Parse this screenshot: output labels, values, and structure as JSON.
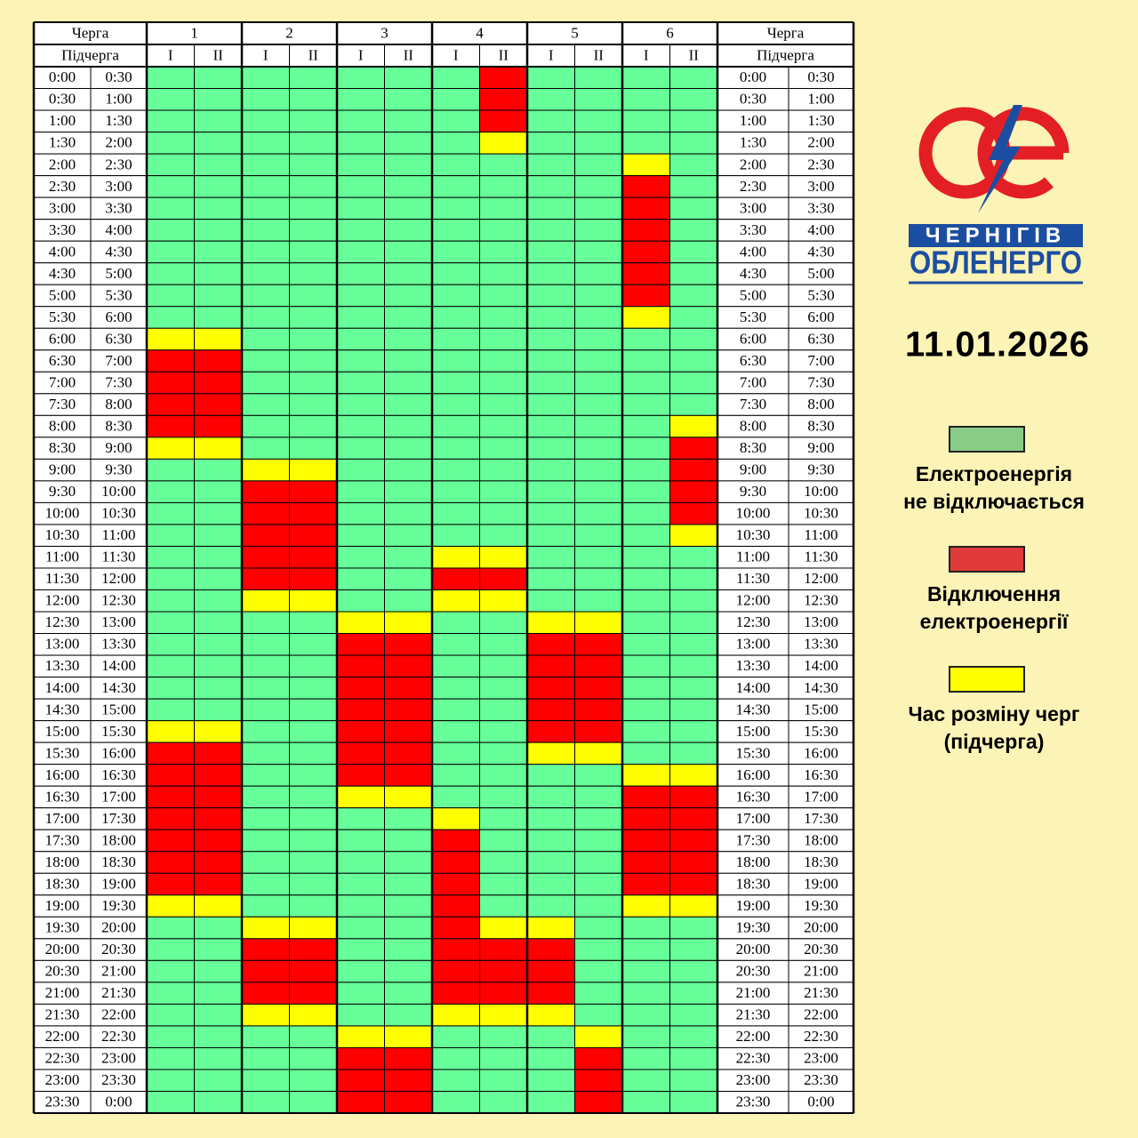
{
  "header": {
    "queue_label": "Черга",
    "subqueue_label": "Підчерга",
    "queues": [
      "1",
      "2",
      "3",
      "4",
      "5",
      "6"
    ],
    "subqueues": [
      "I",
      "II",
      "I",
      "II",
      "I",
      "II",
      "I",
      "II",
      "I",
      "II",
      "I",
      "II"
    ]
  },
  "rows": [
    {
      "from": "0:00",
      "to": "0:30",
      "cells": [
        "#6f9",
        "#6f9",
        "#6f9",
        "#6f9",
        "#6f9",
        "#6f9",
        "#6f9",
        "#f00",
        "#6f9",
        "#6f9",
        "#6f9",
        "#6f9"
      ]
    },
    {
      "from": "0:30",
      "to": "1:00",
      "cells": [
        "#6f9",
        "#6f9",
        "#6f9",
        "#6f9",
        "#6f9",
        "#6f9",
        "#6f9",
        "#f00",
        "#6f9",
        "#6f9",
        "#6f9",
        "#6f9"
      ]
    },
    {
      "from": "1:00",
      "to": "1:30",
      "cells": [
        "#6f9",
        "#6f9",
        "#6f9",
        "#6f9",
        "#6f9",
        "#6f9",
        "#6f9",
        "#f00",
        "#6f9",
        "#6f9",
        "#6f9",
        "#6f9"
      ]
    },
    {
      "from": "1:30",
      "to": "2:00",
      "cells": [
        "#6f9",
        "#6f9",
        "#6f9",
        "#6f9",
        "#6f9",
        "#6f9",
        "#6f9",
        "#ff0",
        "#6f9",
        "#6f9",
        "#6f9",
        "#6f9"
      ]
    },
    {
      "from": "2:00",
      "to": "2:30",
      "cells": [
        "#6f9",
        "#6f9",
        "#6f9",
        "#6f9",
        "#6f9",
        "#6f9",
        "#6f9",
        "#6f9",
        "#6f9",
        "#6f9",
        "#ff0",
        "#6f9"
      ]
    },
    {
      "from": "2:30",
      "to": "3:00",
      "cells": [
        "#6f9",
        "#6f9",
        "#6f9",
        "#6f9",
        "#6f9",
        "#6f9",
        "#6f9",
        "#6f9",
        "#6f9",
        "#6f9",
        "#f00",
        "#6f9"
      ]
    },
    {
      "from": "3:00",
      "to": "3:30",
      "cells": [
        "#6f9",
        "#6f9",
        "#6f9",
        "#6f9",
        "#6f9",
        "#6f9",
        "#6f9",
        "#6f9",
        "#6f9",
        "#6f9",
        "#f00",
        "#6f9"
      ]
    },
    {
      "from": "3:30",
      "to": "4:00",
      "cells": [
        "#6f9",
        "#6f9",
        "#6f9",
        "#6f9",
        "#6f9",
        "#6f9",
        "#6f9",
        "#6f9",
        "#6f9",
        "#6f9",
        "#f00",
        "#6f9"
      ]
    },
    {
      "from": "4:00",
      "to": "4:30",
      "cells": [
        "#6f9",
        "#6f9",
        "#6f9",
        "#6f9",
        "#6f9",
        "#6f9",
        "#6f9",
        "#6f9",
        "#6f9",
        "#6f9",
        "#f00",
        "#6f9"
      ]
    },
    {
      "from": "4:30",
      "to": "5:00",
      "cells": [
        "#6f9",
        "#6f9",
        "#6f9",
        "#6f9",
        "#6f9",
        "#6f9",
        "#6f9",
        "#6f9",
        "#6f9",
        "#6f9",
        "#f00",
        "#6f9"
      ]
    },
    {
      "from": "5:00",
      "to": "5:30",
      "cells": [
        "#6f9",
        "#6f9",
        "#6f9",
        "#6f9",
        "#6f9",
        "#6f9",
        "#6f9",
        "#6f9",
        "#6f9",
        "#6f9",
        "#f00",
        "#6f9"
      ]
    },
    {
      "from": "5:30",
      "to": "6:00",
      "cells": [
        "#6f9",
        "#6f9",
        "#6f9",
        "#6f9",
        "#6f9",
        "#6f9",
        "#6f9",
        "#6f9",
        "#6f9",
        "#6f9",
        "#ff0",
        "#6f9"
      ]
    },
    {
      "from": "6:00",
      "to": "6:30",
      "cells": [
        "#ff0",
        "#ff0",
        "#6f9",
        "#6f9",
        "#6f9",
        "#6f9",
        "#6f9",
        "#6f9",
        "#6f9",
        "#6f9",
        "#6f9",
        "#6f9"
      ]
    },
    {
      "from": "6:30",
      "to": "7:00",
      "cells": [
        "#f00",
        "#f00",
        "#6f9",
        "#6f9",
        "#6f9",
        "#6f9",
        "#6f9",
        "#6f9",
        "#6f9",
        "#6f9",
        "#6f9",
        "#6f9"
      ]
    },
    {
      "from": "7:00",
      "to": "7:30",
      "cells": [
        "#f00",
        "#f00",
        "#6f9",
        "#6f9",
        "#6f9",
        "#6f9",
        "#6f9",
        "#6f9",
        "#6f9",
        "#6f9",
        "#6f9",
        "#6f9"
      ]
    },
    {
      "from": "7:30",
      "to": "8:00",
      "cells": [
        "#f00",
        "#f00",
        "#6f9",
        "#6f9",
        "#6f9",
        "#6f9",
        "#6f9",
        "#6f9",
        "#6f9",
        "#6f9",
        "#6f9",
        "#6f9"
      ]
    },
    {
      "from": "8:00",
      "to": "8:30",
      "cells": [
        "#f00",
        "#f00",
        "#6f9",
        "#6f9",
        "#6f9",
        "#6f9",
        "#6f9",
        "#6f9",
        "#6f9",
        "#6f9",
        "#6f9",
        "#ff0"
      ]
    },
    {
      "from": "8:30",
      "to": "9:00",
      "cells": [
        "#ff0",
        "#ff0",
        "#6f9",
        "#6f9",
        "#6f9",
        "#6f9",
        "#6f9",
        "#6f9",
        "#6f9",
        "#6f9",
        "#6f9",
        "#f00"
      ]
    },
    {
      "from": "9:00",
      "to": "9:30",
      "cells": [
        "#6f9",
        "#6f9",
        "#ff0",
        "#ff0",
        "#6f9",
        "#6f9",
        "#6f9",
        "#6f9",
        "#6f9",
        "#6f9",
        "#6f9",
        "#f00"
      ]
    },
    {
      "from": "9:30",
      "to": "10:00",
      "cells": [
        "#6f9",
        "#6f9",
        "#f00",
        "#f00",
        "#6f9",
        "#6f9",
        "#6f9",
        "#6f9",
        "#6f9",
        "#6f9",
        "#6f9",
        "#f00"
      ]
    },
    {
      "from": "10:00",
      "to": "10:30",
      "cells": [
        "#6f9",
        "#6f9",
        "#f00",
        "#f00",
        "#6f9",
        "#6f9",
        "#6f9",
        "#6f9",
        "#6f9",
        "#6f9",
        "#6f9",
        "#f00"
      ]
    },
    {
      "from": "10:30",
      "to": "11:00",
      "cells": [
        "#6f9",
        "#6f9",
        "#f00",
        "#f00",
        "#6f9",
        "#6f9",
        "#6f9",
        "#6f9",
        "#6f9",
        "#6f9",
        "#6f9",
        "#ff0"
      ]
    },
    {
      "from": "11:00",
      "to": "11:30",
      "cells": [
        "#6f9",
        "#6f9",
        "#f00",
        "#f00",
        "#6f9",
        "#6f9",
        "#ff0",
        "#ff0",
        "#6f9",
        "#6f9",
        "#6f9",
        "#6f9"
      ]
    },
    {
      "from": "11:30",
      "to": "12:00",
      "cells": [
        "#6f9",
        "#6f9",
        "#f00",
        "#f00",
        "#6f9",
        "#6f9",
        "#f00",
        "#f00",
        "#6f9",
        "#6f9",
        "#6f9",
        "#6f9"
      ]
    },
    {
      "from": "12:00",
      "to": "12:30",
      "cells": [
        "#6f9",
        "#6f9",
        "#ff0",
        "#ff0",
        "#6f9",
        "#6f9",
        "#ff0",
        "#ff0",
        "#6f9",
        "#6f9",
        "#6f9",
        "#6f9"
      ]
    },
    {
      "from": "12:30",
      "to": "13:00",
      "cells": [
        "#6f9",
        "#6f9",
        "#6f9",
        "#6f9",
        "#ff0",
        "#ff0",
        "#6f9",
        "#6f9",
        "#ff0",
        "#ff0",
        "#6f9",
        "#6f9"
      ]
    },
    {
      "from": "13:00",
      "to": "13:30",
      "cells": [
        "#6f9",
        "#6f9",
        "#6f9",
        "#6f9",
        "#f00",
        "#f00",
        "#6f9",
        "#6f9",
        "#f00",
        "#f00",
        "#6f9",
        "#6f9"
      ]
    },
    {
      "from": "13:30",
      "to": "14:00",
      "cells": [
        "#6f9",
        "#6f9",
        "#6f9",
        "#6f9",
        "#f00",
        "#f00",
        "#6f9",
        "#6f9",
        "#f00",
        "#f00",
        "#6f9",
        "#6f9"
      ]
    },
    {
      "from": "14:00",
      "to": "14:30",
      "cells": [
        "#6f9",
        "#6f9",
        "#6f9",
        "#6f9",
        "#f00",
        "#f00",
        "#6f9",
        "#6f9",
        "#f00",
        "#f00",
        "#6f9",
        "#6f9"
      ]
    },
    {
      "from": "14:30",
      "to": "15:00",
      "cells": [
        "#6f9",
        "#6f9",
        "#6f9",
        "#6f9",
        "#f00",
        "#f00",
        "#6f9",
        "#6f9",
        "#f00",
        "#f00",
        "#6f9",
        "#6f9"
      ]
    },
    {
      "from": "15:00",
      "to": "15:30",
      "cells": [
        "#ff0",
        "#ff0",
        "#6f9",
        "#6f9",
        "#f00",
        "#f00",
        "#6f9",
        "#6f9",
        "#f00",
        "#f00",
        "#6f9",
        "#6f9"
      ]
    },
    {
      "from": "15:30",
      "to": "16:00",
      "cells": [
        "#f00",
        "#f00",
        "#6f9",
        "#6f9",
        "#f00",
        "#f00",
        "#6f9",
        "#6f9",
        "#ff0",
        "#ff0",
        "#6f9",
        "#6f9"
      ]
    },
    {
      "from": "16:00",
      "to": "16:30",
      "cells": [
        "#f00",
        "#f00",
        "#6f9",
        "#6f9",
        "#f00",
        "#f00",
        "#6f9",
        "#6f9",
        "#6f9",
        "#6f9",
        "#ff0",
        "#ff0"
      ]
    },
    {
      "from": "16:30",
      "to": "17:00",
      "cells": [
        "#f00",
        "#f00",
        "#6f9",
        "#6f9",
        "#ff0",
        "#ff0",
        "#6f9",
        "#6f9",
        "#6f9",
        "#6f9",
        "#f00",
        "#f00"
      ]
    },
    {
      "from": "17:00",
      "to": "17:30",
      "cells": [
        "#f00",
        "#f00",
        "#6f9",
        "#6f9",
        "#6f9",
        "#6f9",
        "#ff0",
        "#6f9",
        "#6f9",
        "#6f9",
        "#f00",
        "#f00"
      ]
    },
    {
      "from": "17:30",
      "to": "18:00",
      "cells": [
        "#f00",
        "#f00",
        "#6f9",
        "#6f9",
        "#6f9",
        "#6f9",
        "#f00",
        "#6f9",
        "#6f9",
        "#6f9",
        "#f00",
        "#f00"
      ]
    },
    {
      "from": "18:00",
      "to": "18:30",
      "cells": [
        "#f00",
        "#f00",
        "#6f9",
        "#6f9",
        "#6f9",
        "#6f9",
        "#f00",
        "#6f9",
        "#6f9",
        "#6f9",
        "#f00",
        "#f00"
      ]
    },
    {
      "from": "18:30",
      "to": "19:00",
      "cells": [
        "#f00",
        "#f00",
        "#6f9",
        "#6f9",
        "#6f9",
        "#6f9",
        "#f00",
        "#6f9",
        "#6f9",
        "#6f9",
        "#f00",
        "#f00"
      ]
    },
    {
      "from": "19:00",
      "to": "19:30",
      "cells": [
        "#ff0",
        "#ff0",
        "#6f9",
        "#6f9",
        "#6f9",
        "#6f9",
        "#f00",
        "#6f9",
        "#6f9",
        "#6f9",
        "#ff0",
        "#ff0"
      ]
    },
    {
      "from": "19:30",
      "to": "20:00",
      "cells": [
        "#6f9",
        "#6f9",
        "#ff0",
        "#ff0",
        "#6f9",
        "#6f9",
        "#f00",
        "#ff0",
        "#ff0",
        "#6f9",
        "#6f9",
        "#6f9"
      ]
    },
    {
      "from": "20:00",
      "to": "20:30",
      "cells": [
        "#6f9",
        "#6f9",
        "#f00",
        "#f00",
        "#6f9",
        "#6f9",
        "#f00",
        "#f00",
        "#f00",
        "#6f9",
        "#6f9",
        "#6f9"
      ]
    },
    {
      "from": "20:30",
      "to": "21:00",
      "cells": [
        "#6f9",
        "#6f9",
        "#f00",
        "#f00",
        "#6f9",
        "#6f9",
        "#f00",
        "#f00",
        "#f00",
        "#6f9",
        "#6f9",
        "#6f9"
      ]
    },
    {
      "from": "21:00",
      "to": "21:30",
      "cells": [
        "#6f9",
        "#6f9",
        "#f00",
        "#f00",
        "#6f9",
        "#6f9",
        "#f00",
        "#f00",
        "#f00",
        "#6f9",
        "#6f9",
        "#6f9"
      ]
    },
    {
      "from": "21:30",
      "to": "22:00",
      "cells": [
        "#6f9",
        "#6f9",
        "#ff0",
        "#ff0",
        "#6f9",
        "#6f9",
        "#ff0",
        "#ff0",
        "#ff0",
        "#6f9",
        "#6f9",
        "#6f9"
      ]
    },
    {
      "from": "22:00",
      "to": "22:30",
      "cells": [
        "#6f9",
        "#6f9",
        "#6f9",
        "#6f9",
        "#ff0",
        "#ff0",
        "#6f9",
        "#6f9",
        "#6f9",
        "#ff0",
        "#6f9",
        "#6f9"
      ]
    },
    {
      "from": "22:30",
      "to": "23:00",
      "cells": [
        "#6f9",
        "#6f9",
        "#6f9",
        "#6f9",
        "#f00",
        "#f00",
        "#6f9",
        "#6f9",
        "#6f9",
        "#f00",
        "#6f9",
        "#6f9"
      ]
    },
    {
      "from": "23:00",
      "to": "23:30",
      "cells": [
        "#6f9",
        "#6f9",
        "#6f9",
        "#6f9",
        "#f00",
        "#f00",
        "#6f9",
        "#6f9",
        "#6f9",
        "#f00",
        "#6f9",
        "#6f9"
      ]
    },
    {
      "from": "23:30",
      "to": "0:00",
      "cells": [
        "#6f9",
        "#6f9",
        "#6f9",
        "#6f9",
        "#f00",
        "#f00",
        "#6f9",
        "#6f9",
        "#6f9",
        "#f00",
        "#6f9",
        "#6f9"
      ]
    }
  ],
  "logo": {
    "line1": "ЧЕРНІГІВ",
    "line2": "ОБЛЕНЕРГО"
  },
  "date": "11.01.2026",
  "legend": [
    {
      "color": "#88cc88",
      "lines": [
        "Електроенергія",
        "не відключається"
      ]
    },
    {
      "color": "#e03a3a",
      "lines": [
        "Відключення",
        "електроенергії"
      ]
    },
    {
      "color": "#ffff00",
      "lines": [
        "Час розміну черг",
        "(підчерга)"
      ]
    }
  ]
}
